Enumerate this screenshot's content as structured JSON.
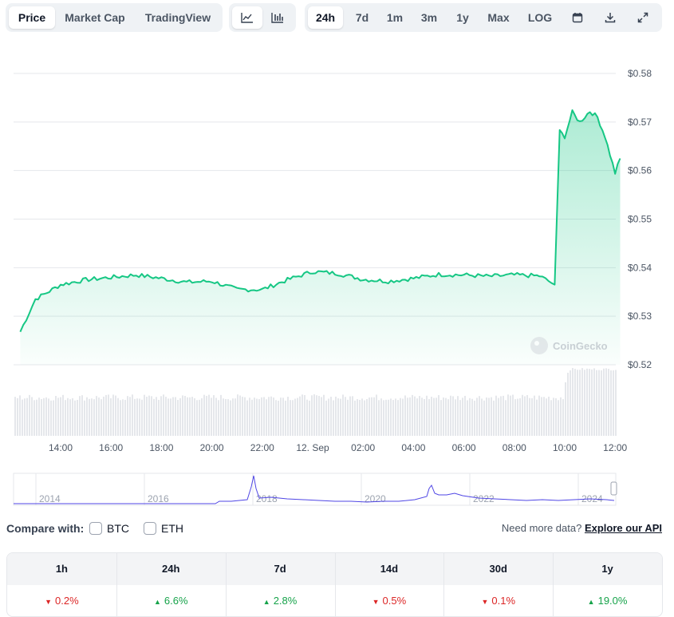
{
  "tabs": {
    "price": "Price",
    "market_cap": "Market Cap",
    "trading_view": "TradingView"
  },
  "chart_type_icons": [
    "line-chart-icon",
    "candlestick-chart-icon"
  ],
  "ranges": [
    "24h",
    "7d",
    "1m",
    "3m",
    "1y",
    "Max",
    "LOG"
  ],
  "active_range": "24h",
  "tool_icons": [
    "calendar-icon",
    "download-icon",
    "expand-icon"
  ],
  "watermark": "CoinGecko",
  "chart_data": {
    "type": "area",
    "x_tick_labels": [
      "14:00",
      "16:00",
      "18:00",
      "20:00",
      "22:00",
      "12. Sep",
      "02:00",
      "04:00",
      "06:00",
      "08:00",
      "10:00",
      "12:00"
    ],
    "y_tick_labels": [
      "$0.58",
      "$0.57",
      "$0.56",
      "$0.55",
      "$0.54",
      "$0.53",
      "$0.52"
    ],
    "ylim": [
      0.52,
      0.58
    ],
    "x_hours": [
      12.4,
      13.0,
      14.0,
      15.0,
      16.0,
      17.0,
      18.0,
      19.0,
      20.0,
      21.0,
      22.0,
      23.0,
      24.0,
      25.0,
      26.0,
      27.0,
      28.0,
      29.0,
      30.0,
      31.0,
      32.0,
      33.0,
      33.6,
      33.8,
      34.0,
      34.3,
      34.6,
      35.0,
      35.3,
      35.6,
      36.0,
      36.2
    ],
    "y": [
      0.5268,
      0.5335,
      0.5365,
      0.5375,
      0.538,
      0.5385,
      0.5378,
      0.537,
      0.5372,
      0.5355,
      0.5355,
      0.5375,
      0.5392,
      0.5388,
      0.5376,
      0.5372,
      0.5378,
      0.5386,
      0.5385,
      0.5382,
      0.5385,
      0.5383,
      0.5365,
      0.568,
      0.567,
      0.572,
      0.57,
      0.5722,
      0.571,
      0.567,
      0.5595,
      0.5625
    ],
    "series_color": "#16c784",
    "volume_present": true,
    "grid": "horizontal"
  },
  "navigator": {
    "year_labels": [
      "2014",
      "2016",
      "2018",
      "2020",
      "2022",
      "2024"
    ]
  },
  "compare": {
    "label": "Compare with:",
    "options": [
      "BTC",
      "ETH"
    ],
    "more_data": "Need more data?",
    "api_link": "Explore our API"
  },
  "performance": {
    "headers": [
      "1h",
      "24h",
      "7d",
      "14d",
      "30d",
      "1y"
    ],
    "values": [
      "0.2%",
      "6.6%",
      "2.8%",
      "0.5%",
      "0.1%",
      "19.0%"
    ],
    "directions": [
      "down",
      "up",
      "up",
      "down",
      "down",
      "up"
    ]
  }
}
